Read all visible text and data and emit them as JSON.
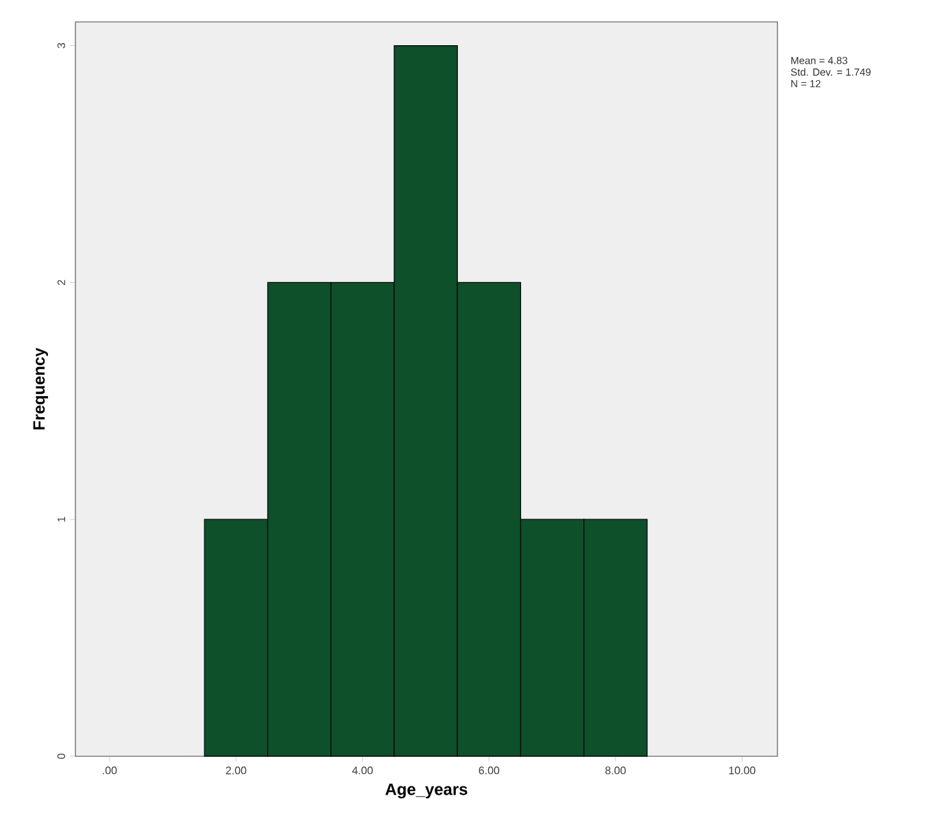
{
  "chart_data": {
    "type": "histogram",
    "xlabel": "Age_years",
    "ylabel": "Frequency",
    "bins": [
      1.5,
      2.5,
      3.5,
      4.5,
      5.5,
      6.5,
      7.5,
      8.5
    ],
    "values": [
      1,
      2,
      2,
      3,
      2,
      1,
      1
    ],
    "color": "#0d5029",
    "xlim": [
      -0.54,
      10.56
    ],
    "ylim": [
      0,
      3.1
    ],
    "xticks": [
      {
        "value": 0,
        "label": ".00"
      },
      {
        "value": 2,
        "label": "2.00"
      },
      {
        "value": 4,
        "label": "4.00"
      },
      {
        "value": 6,
        "label": "6.00"
      },
      {
        "value": 8,
        "label": "8.00"
      },
      {
        "value": 10,
        "label": "10.00"
      }
    ],
    "yticks": [
      0,
      1,
      2,
      3
    ],
    "annotations": [
      "Mean = 4.83",
      "Std. Dev. = 1.749",
      "N = 12"
    ],
    "grid": false
  }
}
